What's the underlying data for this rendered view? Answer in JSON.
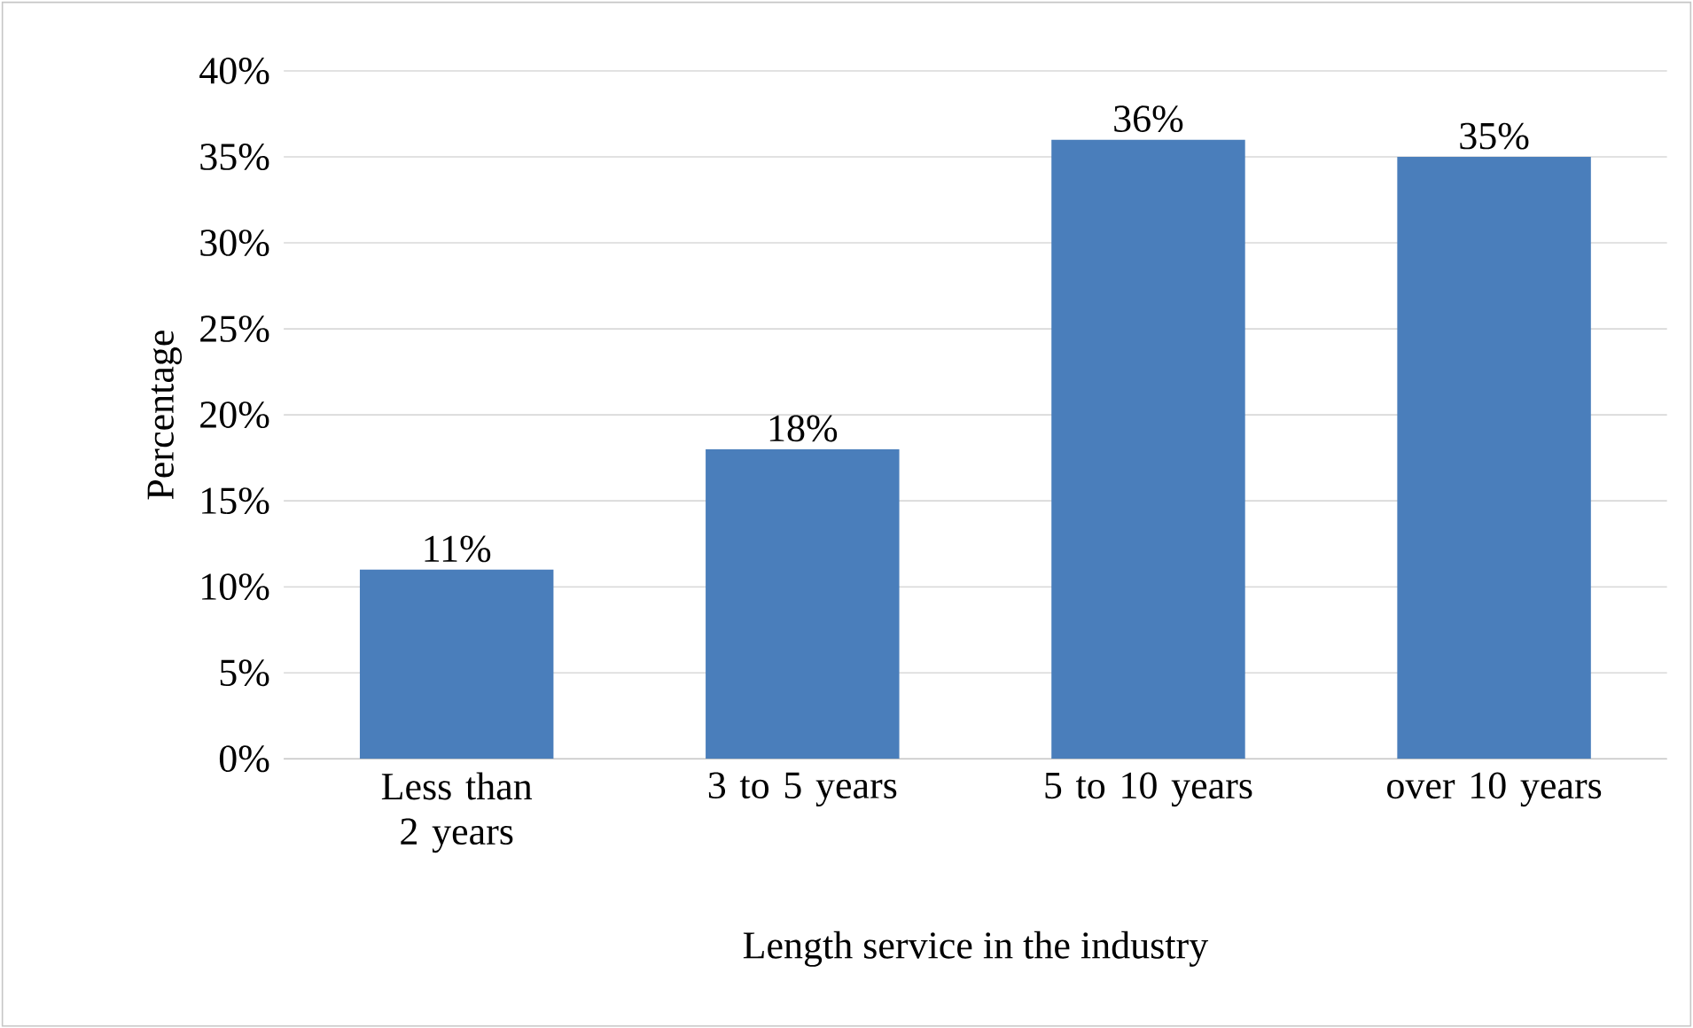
{
  "chart_data": {
    "type": "bar",
    "xlabel": "Length service in the industry",
    "ylabel": "Percentage",
    "categories": [
      "Less than 2 years",
      "3 to 5 years",
      "5 to 10 years",
      "over 10 years"
    ],
    "values": [
      11,
      18,
      36,
      35
    ],
    "value_labels": [
      "11%",
      "18%",
      "36%",
      "35%"
    ],
    "color": "#4a7ebb",
    "ylim": [
      0,
      40
    ],
    "yticks": [
      {
        "value": 0,
        "label": "0%"
      },
      {
        "value": 5,
        "label": "5%"
      },
      {
        "value": 10,
        "label": "10%"
      },
      {
        "value": 15,
        "label": "15%"
      },
      {
        "value": 20,
        "label": "20%"
      },
      {
        "value": 25,
        "label": "25%"
      },
      {
        "value": 30,
        "label": "30%"
      },
      {
        "value": 35,
        "label": "35%"
      },
      {
        "value": 40,
        "label": "40%"
      }
    ],
    "grid": "y"
  }
}
